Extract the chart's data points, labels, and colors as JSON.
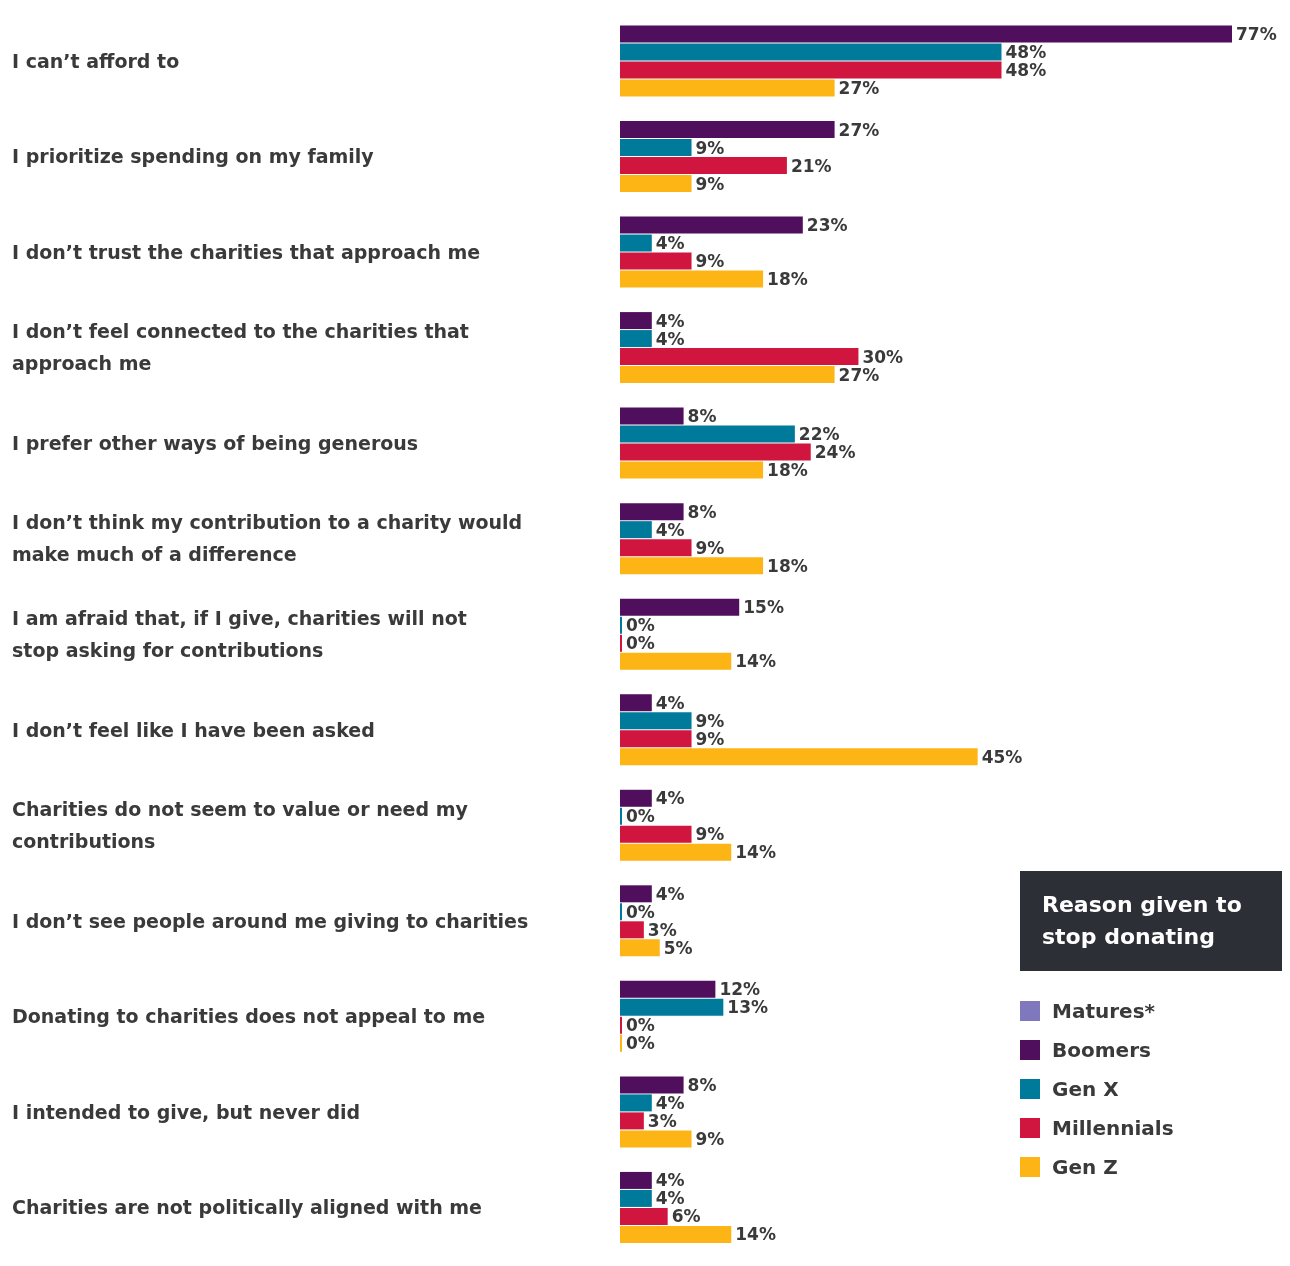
{
  "chart_data": {
    "type": "bar",
    "orientation": "horizontal",
    "legend_title": "Reason given to stop donating",
    "legend": "bottom right",
    "data_labels": true,
    "grid": false,
    "categories": [
      "I can’t afford to",
      "I prioritize spending on my family",
      "I don’t trust the charities that approach me",
      "I don’t feel connected to the charities that approach me",
      "I prefer other ways of being generous",
      "I don’t think my contribution to a charity would make much of a difference",
      "I am afraid that, if I give, charities will not stop asking for contributions",
      "I don’t feel like I have been asked",
      "Charities do not seem to value or need my contributions",
      "I don’t see people around me giving to charities",
      "Donating to charities does not appeal to me",
      "I intended to give, but never did",
      "Charities are not politically aligned with me"
    ],
    "series": [
      {
        "name": "Matures*",
        "color": "#7f78bd",
        "values": [
          null,
          null,
          null,
          null,
          null,
          null,
          null,
          null,
          null,
          null,
          null,
          null,
          null
        ]
      },
      {
        "name": "Boomers",
        "color": "#4f0f5c",
        "values": [
          77,
          27,
          23,
          4,
          8,
          8,
          15,
          4,
          4,
          4,
          12,
          8,
          4
        ],
        "value_labels": [
          "77%",
          "27%",
          "23%",
          "4%",
          "8%",
          "8%",
          "15%",
          "4%",
          "4%",
          "4%",
          "12%",
          "8%",
          "4%"
        ]
      },
      {
        "name": "Gen X",
        "color": "#007a9a",
        "values": [
          48,
          9,
          4,
          4,
          22,
          4,
          0,
          9,
          0,
          0,
          13,
          4,
          4
        ],
        "value_labels": [
          "48%",
          "9%",
          "4%",
          "4%",
          "22%",
          "4%",
          "0%",
          "9%",
          "0%",
          "0%",
          "13%",
          "4%",
          "4%"
        ]
      },
      {
        "name": "Millennials",
        "color": "#d0163f",
        "values": [
          48,
          21,
          9,
          30,
          24,
          9,
          0,
          9,
          9,
          3,
          0,
          3,
          6
        ],
        "value_labels": [
          "48%",
          "21%",
          "9%",
          "30%",
          "24%",
          "9%",
          "0%",
          "9%",
          "9%",
          "3%",
          "0%",
          "3%",
          "6%"
        ]
      },
      {
        "name": "Gen Z",
        "color": "#fdb515",
        "values": [
          27,
          9,
          18,
          27,
          18,
          18,
          14,
          45,
          14,
          5,
          0,
          9,
          14
        ],
        "value_labels": [
          "27%",
          "9%",
          "18%",
          "27%",
          "18%",
          "18%",
          "14%",
          "45%",
          "14%",
          "5%",
          "0%",
          "9%",
          "14%"
        ]
      }
    ]
  }
}
